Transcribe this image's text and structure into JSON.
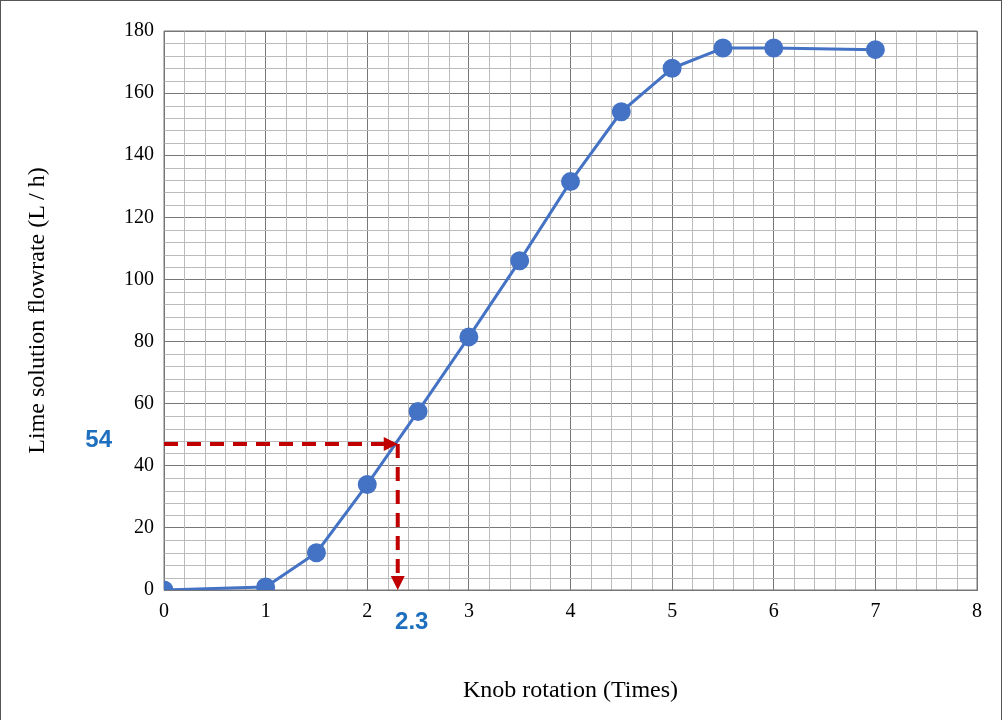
{
  "chart_data": {
    "type": "line",
    "xlabel": "Knob rotation (Times)",
    "ylabel": "Lime solution flowrate (L / h)",
    "x": [
      0,
      1,
      1.5,
      2,
      2.5,
      3,
      3.5,
      4,
      4.5,
      5,
      5.5,
      6,
      7
    ],
    "series": [
      {
        "color": "#4472c4",
        "values": [
          0,
          1,
          12,
          34,
          57.5,
          81.5,
          106,
          131.5,
          154,
          168,
          174.5,
          174.5,
          174
        ]
      }
    ],
    "xlim": [
      0,
      8
    ],
    "xticks": [
      0,
      1,
      2,
      3,
      4,
      5,
      6,
      7,
      8
    ],
    "ylim": [
      0,
      180
    ],
    "yticks": [
      0,
      20,
      40,
      60,
      80,
      100,
      120,
      140,
      160,
      180
    ],
    "grid": true,
    "legend": false,
    "marker": "circle",
    "line_style": "solid",
    "ref_lines": [
      {
        "axis": "y",
        "value": 47,
        "color": "#c00000",
        "line_style": "dashed"
      },
      {
        "axis": "x",
        "value": 2.3,
        "color": "#c00000",
        "line_style": "dashed"
      }
    ],
    "annotations": [
      "54",
      "2.3"
    ]
  }
}
